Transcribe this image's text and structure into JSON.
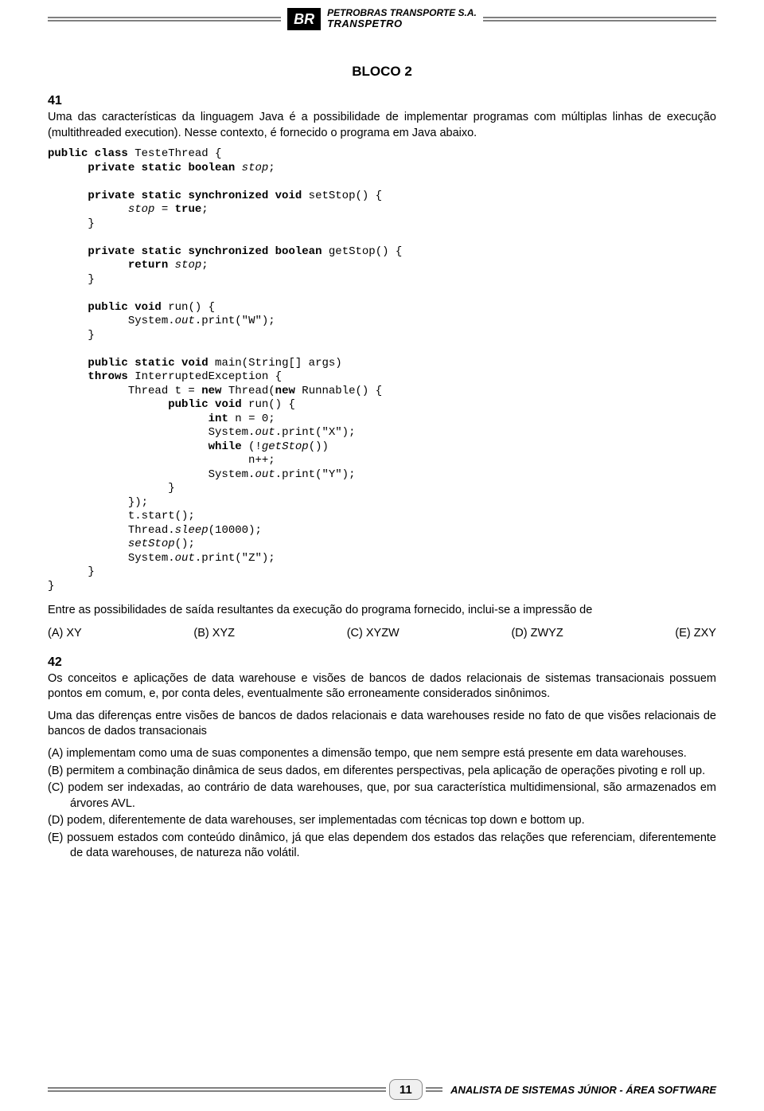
{
  "header": {
    "logo_text": "BR",
    "company": "PETROBRAS TRANSPORTE S.A.",
    "brand": "TRANSPETRO"
  },
  "block_title": "BLOCO 2",
  "q41": {
    "num": "41",
    "intro": "Uma das características da linguagem Java é a possibilidade de implementar programas com múltiplas linhas de execução (multithreaded execution). Nesse contexto, é fornecido o programa em Java abaixo.",
    "post": "Entre as possibilidades de saída resultantes da execução do programa fornecido, inclui-se a impressão de",
    "options": {
      "a": "(A) XY",
      "b": "(B) XYZ",
      "c": "(C) XYZW",
      "d": "(D) ZWYZ",
      "e": "(E) ZXY"
    }
  },
  "q42": {
    "num": "42",
    "p1": "Os conceitos e aplicações de data warehouse e visões de bancos de dados relacionais de sistemas transacionais possuem pontos em comum, e, por conta deles, eventualmente são erroneamente considerados sinônimos.",
    "p2": "Uma das diferenças entre visões de bancos de dados relacionais e data warehouses reside no fato de que visões relacionais de bancos de dados transacionais",
    "opts": {
      "a": "(A) implementam como uma de suas componentes a dimensão tempo, que nem sempre está presente em data warehouses.",
      "b": "(B) permitem a combinação dinâmica de seus dados, em diferentes perspectivas, pela aplicação de operações pivoting e roll up.",
      "c": "(C) podem ser indexadas, ao contrário de data warehouses, que, por sua característica multidimensional, são armazenados em árvores AVL.",
      "d": "(D) podem, diferentemente de data warehouses, ser implementadas com técnicas top down e bottom up.",
      "e": "(E) possuem estados com conteúdo dinâmico, já que elas dependem dos estados das relações que referenciam, diferentemente de data warehouses, de natureza não volátil."
    }
  },
  "footer": {
    "page": "11",
    "caption": "ANALISTA DE SISTEMAS JÚNIOR - ÁREA SOFTWARE"
  },
  "colors": {
    "text": "#000000",
    "bg": "#ffffff",
    "rule": "#808080"
  }
}
